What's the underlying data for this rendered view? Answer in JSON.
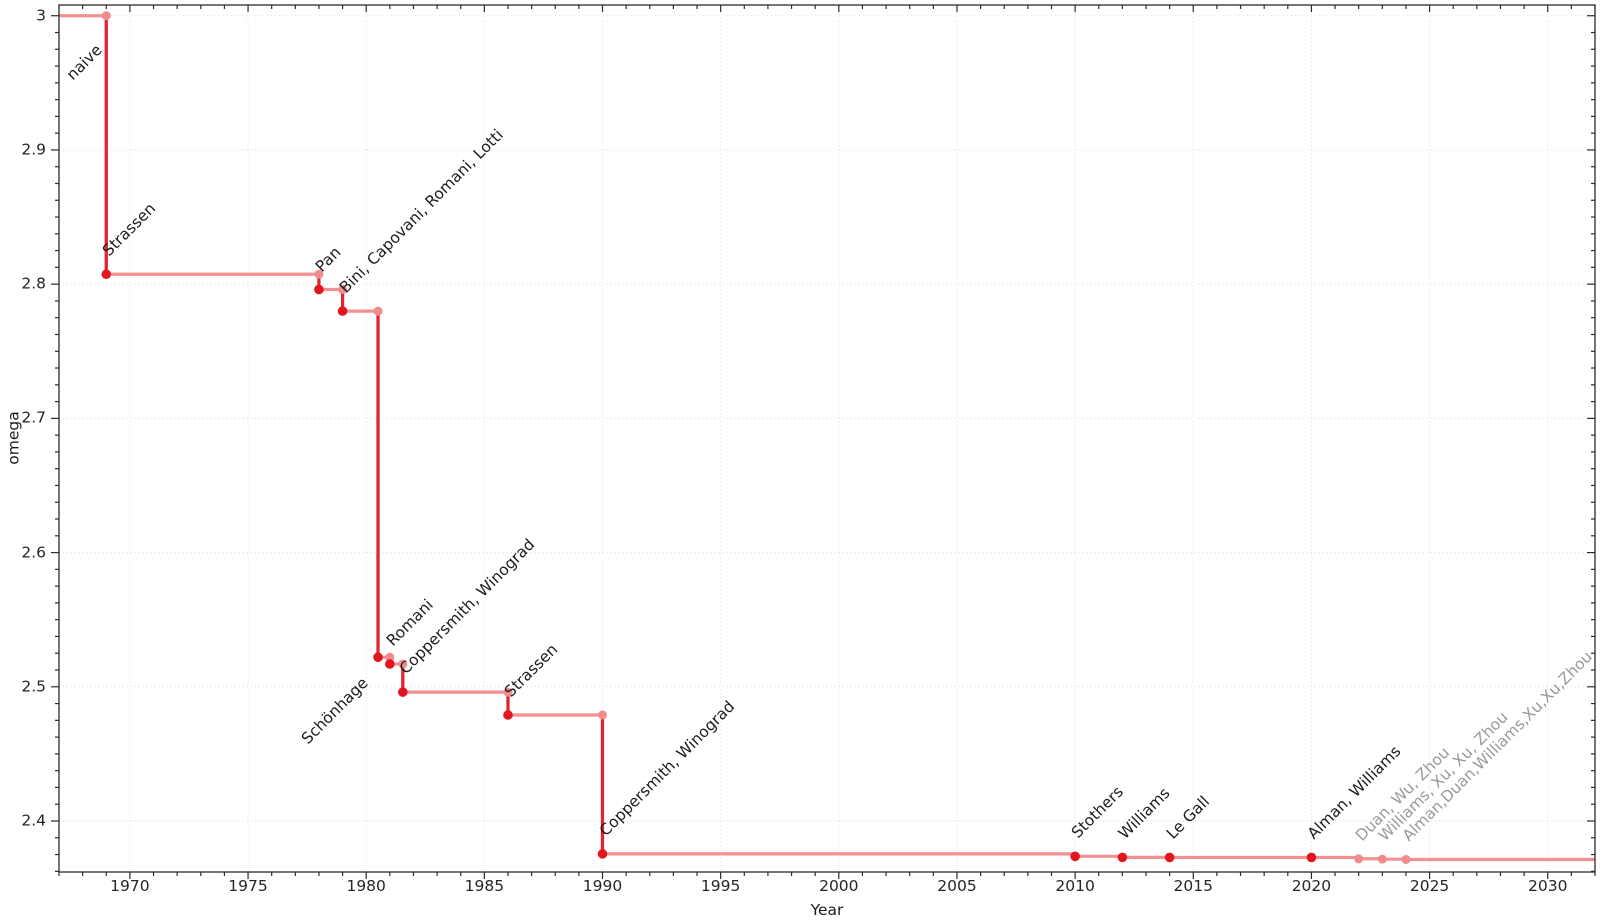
{
  "chart_data": {
    "type": "line",
    "subtype": "step-post",
    "title": "",
    "xlabel": "Year",
    "ylabel": "omega",
    "xlim": [
      1967,
      2032
    ],
    "ylim": [
      2.362,
      3.008
    ],
    "grid": "dotted-major-both-axes",
    "legend": "none",
    "x_major_ticks": [
      1970,
      1975,
      1980,
      1985,
      1990,
      1995,
      2000,
      2005,
      2010,
      2015,
      2020,
      2025,
      2030
    ],
    "x_minor_step_years": 1,
    "y_major_ticks": [
      {
        "v": 2.4,
        "label": "2.4"
      },
      {
        "v": 2.5,
        "label": "2.5"
      },
      {
        "v": 2.6,
        "label": "2.6"
      },
      {
        "v": 2.7,
        "label": "2.7"
      },
      {
        "v": 2.8,
        "label": "2.8"
      },
      {
        "v": 2.9,
        "label": "2.9"
      },
      {
        "v": 3.0,
        "label": "3"
      }
    ],
    "y_minor_step": 0.0125,
    "line_end_year": 2032,
    "points": [
      {
        "label": "naive",
        "year": 1967,
        "omega": 3.0,
        "status": "established"
      },
      {
        "label": "Strassen",
        "year": 1969,
        "omega": 2.8074,
        "status": "established"
      },
      {
        "label": "Pan",
        "year": 1978,
        "omega": 2.796,
        "status": "established"
      },
      {
        "label": "Bini, Capovani, Romani, Lotti",
        "year": 1979,
        "omega": 2.7799,
        "status": "established"
      },
      {
        "label": "Schönhage",
        "year": 1980.5,
        "omega": 2.522,
        "status": "established"
      },
      {
        "label": "Romani",
        "year": 1981,
        "omega": 2.517,
        "status": "established"
      },
      {
        "label": "Coppersmith, Winograd",
        "year": 1981.55,
        "omega": 2.496,
        "status": "established"
      },
      {
        "label": "Strassen",
        "year": 1986,
        "omega": 2.479,
        "status": "established"
      },
      {
        "label": "Coppersmith, Winograd",
        "year": 1990,
        "omega": 2.3755,
        "status": "established"
      },
      {
        "label": "Stothers",
        "year": 2010,
        "omega": 2.3737,
        "status": "established"
      },
      {
        "label": "Williams",
        "year": 2012,
        "omega": 2.3729,
        "status": "established"
      },
      {
        "label": "Le Gall",
        "year": 2014,
        "omega": 2.37286,
        "status": "established"
      },
      {
        "label": "Alman, Williams",
        "year": 2020,
        "omega": 2.37286,
        "status": "established"
      },
      {
        "label": "Duan, Wu, Zhou",
        "year": 2022,
        "omega": 2.371866,
        "status": "recent"
      },
      {
        "label": "Williams, Xu, Xu, Zhou",
        "year": 2023,
        "omega": 2.371552,
        "status": "recent"
      },
      {
        "label": "Alman,Duan,Williams,Xu,Xu,Zhou",
        "year": 2024,
        "omega": 2.371339,
        "status": "recent"
      }
    ]
  },
  "colors": {
    "step_line_light": "#f4908f",
    "drop_line_dark": "#e02532",
    "marker_dark": "#e3161f",
    "marker_light": "#f18c8d",
    "annotation_established": "#1c1c1c",
    "annotation_recent": "#9a9a9a",
    "grid": "#dcdcdc",
    "spine": "#2b2b2b",
    "tick_label": "#262626",
    "background": "#ffffff"
  }
}
